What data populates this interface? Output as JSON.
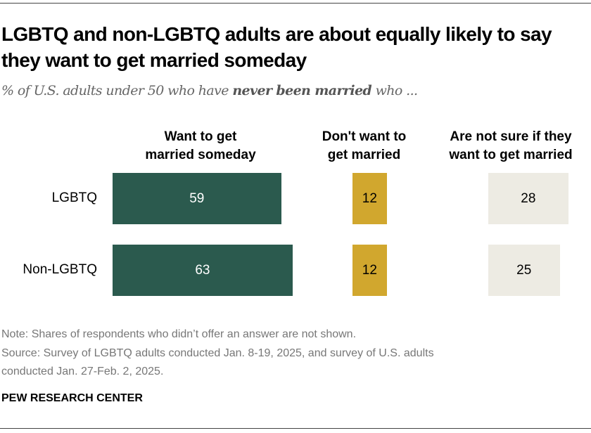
{
  "title": "LGBTQ and non-LGBTQ adults are about equally likely to say they want to get married someday",
  "subtitle_pre": "% of U.S. adults under 50 who have ",
  "subtitle_bold": "never been married",
  "subtitle_post": " who ...",
  "chart_data": {
    "type": "bar",
    "orientation": "horizontal",
    "categories": [
      "LGBTQ",
      "Non-LGBTQ"
    ],
    "series": [
      {
        "name": "Want to get married someday",
        "values": [
          59,
          63
        ],
        "color": "#2b5a4e",
        "text_color": "#ffffff"
      },
      {
        "name": "Don't want to get married",
        "values": [
          12,
          12
        ],
        "color": "#d1a72e",
        "text_color": "#000000"
      },
      {
        "name": "Are not sure if they want to get married",
        "values": [
          28,
          25
        ],
        "color": "#edebe3",
        "text_color": "#000000"
      }
    ],
    "column_headers": [
      [
        "Want to get",
        "married someday"
      ],
      [
        "Don't want to",
        "get married"
      ],
      [
        "Are not sure if they",
        "want to get married"
      ]
    ],
    "grid": false,
    "legend": "none"
  },
  "notes": {
    "note": "Note: Shares of respondents who didn’t offer an answer are not shown.",
    "source1": "Source: Survey of LGBTQ adults conducted Jan. 8-19, 2025, and survey of U.S. adults",
    "source2": "conducted Jan. 27-Feb. 2, 2025."
  },
  "logo": "PEW RESEARCH CENTER"
}
